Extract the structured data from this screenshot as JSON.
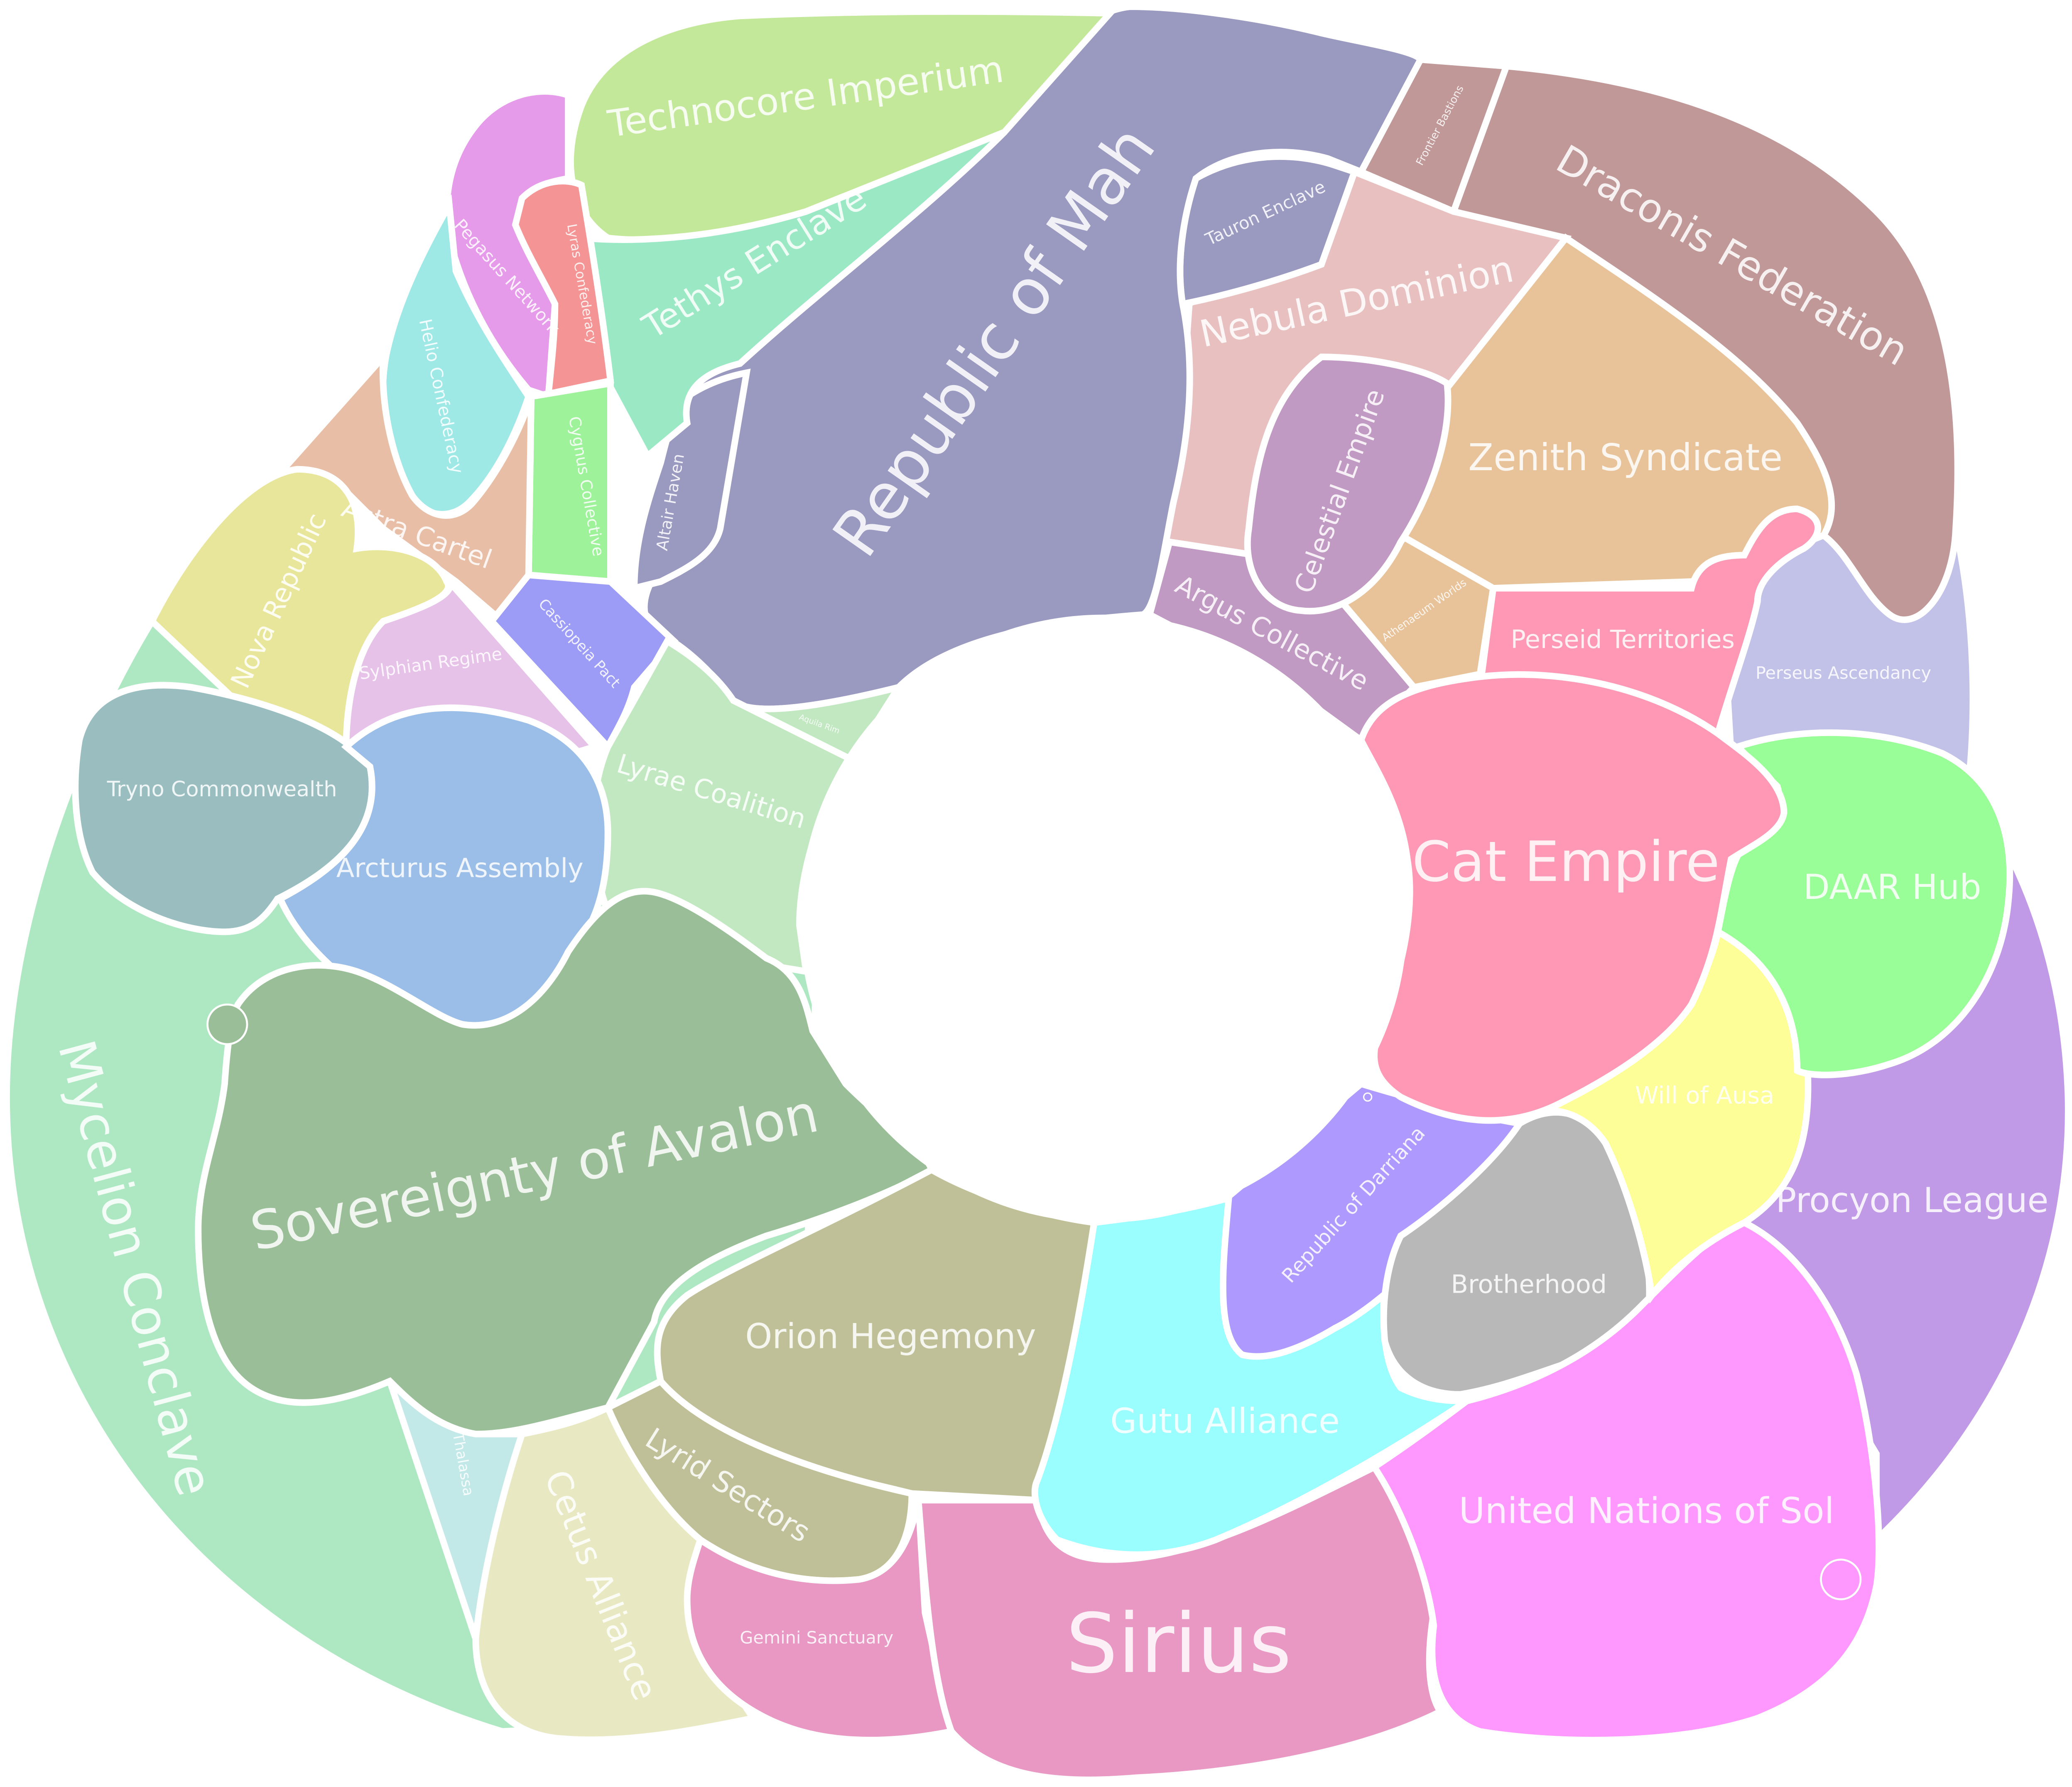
{
  "map": {
    "regions": [
      {
        "id": "mycelion-conclave",
        "name": "Mycelion Conclave",
        "color": "#aee8c2"
      },
      {
        "id": "astra-cartel",
        "name": "Astra Cartel",
        "color": "#e8bea6"
      },
      {
        "id": "nova-republic",
        "name": "Nova Republic",
        "color": "#e8e69a"
      },
      {
        "id": "helio-confederacy",
        "name": "Helio Confederacy",
        "color": "#9ee8e6"
      },
      {
        "id": "pegasus-network",
        "name": "Pegasus Network",
        "color": "#e69aea"
      },
      {
        "id": "lyras-confederacy",
        "name": "Lyras Confederacy",
        "color": "#f49494"
      },
      {
        "id": "technocore-imperium",
        "name": "Technocore Imperium",
        "color": "#c4e89a"
      },
      {
        "id": "tethys-enclave",
        "name": "Tethys Enclave",
        "color": "#9ae8c4"
      },
      {
        "id": "cassiopeia-pact",
        "name": "Cassiopeia Pact",
        "color": "#9ef29a"
      },
      {
        "id": "cygnus-collective",
        "name": "Cygnus Collective",
        "color": "#9c9cf6"
      },
      {
        "id": "sylphian-regime",
        "name": "Sylphian Regime",
        "color": "#e6c2e8"
      },
      {
        "id": "republic-of-mah",
        "name": "Republic of Mah",
        "color": "#9a9ac0"
      },
      {
        "id": "altair-haven",
        "name": "Altair Haven",
        "color": "#9a9ac0"
      },
      {
        "id": "tauron-enclave",
        "name": "Tauron Enclave",
        "color": "#9a9ac0"
      },
      {
        "id": "frontier-bastions",
        "name": "Frontier Bastions",
        "color": "#c09898"
      },
      {
        "id": "draconis-federation",
        "name": "Draconis Federation",
        "color": "#c09898"
      },
      {
        "id": "nebula-dominion",
        "name": "Nebula Dominion",
        "color": "#e8c0c0"
      },
      {
        "id": "celestial-empire",
        "name": "Celestial Empire",
        "color": "#c09ac2"
      },
      {
        "id": "zenith-syndicate",
        "name": "Zenith Syndicate",
        "color": "#e8c298"
      },
      {
        "id": "athenaeum-worlds",
        "name": "Athenaeum Worlds",
        "color": "#e8c298"
      },
      {
        "id": "argus-collective",
        "name": "Argus Collective",
        "color": "#c09ac2"
      },
      {
        "id": "perseid-territories",
        "name": "Perseid Territories",
        "color": "#fe98b4"
      },
      {
        "id": "perseus-ascendancy",
        "name": "Perseus Ascendancy",
        "color": "#c2c2e8"
      },
      {
        "id": "aquila-rim",
        "name": "Aquila Rim",
        "color": "#c2e8c2"
      },
      {
        "id": "lyrae-coalition",
        "name": "Lyrae Coalition",
        "color": "#c2e8c2"
      },
      {
        "id": "tryno-commonwealth",
        "name": "Tryno Commonwealth",
        "color": "#9abec0"
      },
      {
        "id": "arcturus-assembly",
        "name": "Arcturus Assembly",
        "color": "#9abee8"
      },
      {
        "id": "sovereignty-of-avalon",
        "name": "Sovereignty of Avalon",
        "color": "#9abe98"
      },
      {
        "id": "cat-empire",
        "name": "Cat Empire",
        "color": "#fe98b4"
      },
      {
        "id": "daar-hub",
        "name": "DAAR Hub",
        "color": "#9afe98"
      },
      {
        "id": "procyon-league",
        "name": "Procyon League",
        "color": "#c09ae6"
      },
      {
        "id": "will-of-ausa",
        "name": "Will of Ausa",
        "color": "#fefe98"
      },
      {
        "id": "republic-of-darriana",
        "name": "Republic of Darriana",
        "color": "#ae9afe"
      },
      {
        "id": "brotherhood",
        "name": "Brotherhood",
        "color": "#b8b8b8"
      },
      {
        "id": "gutu-alliance",
        "name": "Gutu Alliance",
        "color": "#9afefe"
      },
      {
        "id": "united-nations-of-sol",
        "name": "United Nations of Sol",
        "color": "#fe98fe"
      },
      {
        "id": "orion-hegemony",
        "name": "Orion Hegemony",
        "color": "#c0c098"
      },
      {
        "id": "lyrid-sectors",
        "name": "Lyrid Sectors",
        "color": "#c0c098"
      },
      {
        "id": "thalassa",
        "name": "Thalassa",
        "color": "#c2e8e8"
      },
      {
        "id": "cetus-alliance",
        "name": "Cetus Alliance",
        "color": "#e8e8c2"
      },
      {
        "id": "gemini-sanctuary",
        "name": "Gemini Sanctuary",
        "color": "#e898c2"
      },
      {
        "id": "sirius",
        "name": "Sirius",
        "color": "#e898c2"
      }
    ]
  }
}
